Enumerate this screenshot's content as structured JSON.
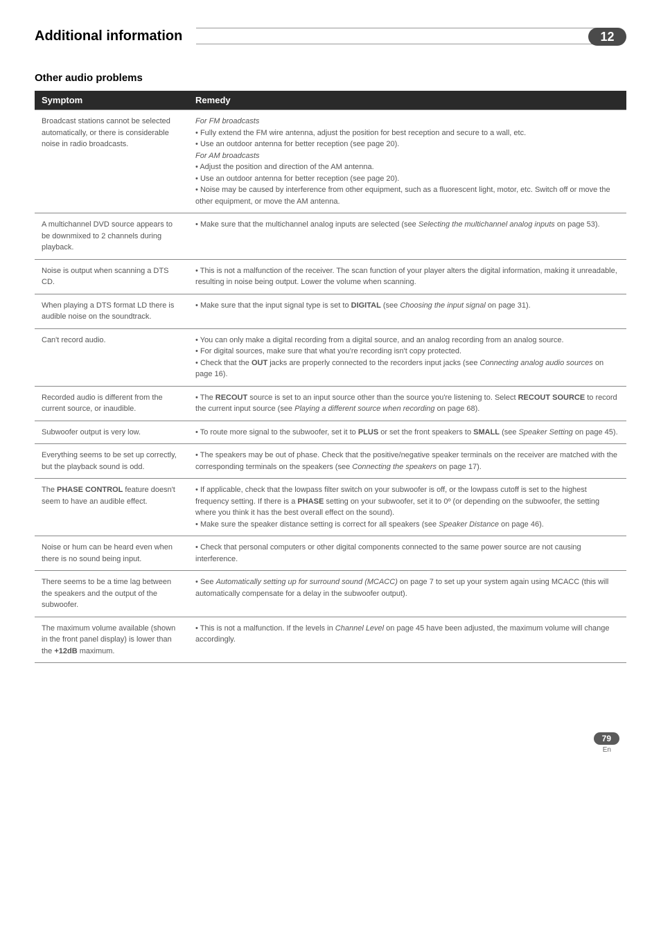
{
  "header": {
    "title": "Additional information",
    "badge": "12"
  },
  "section": {
    "title": "Other audio problems"
  },
  "table": {
    "columns": [
      "Symptom",
      "Remedy"
    ],
    "rows": [
      {
        "symptom": "Broadcast stations cannot be selected automatically, or there is considerable noise in radio broadcasts.",
        "remedy": "<span class=\"italic\">For FM broadcasts</span><br>• Fully extend the FM wire antenna, adjust the position for best reception and secure to a wall, etc.<br>• Use an outdoor antenna for better reception (see page 20).<br><span class=\"italic\">For AM broadcasts</span><br>• Adjust the position and direction of the AM antenna.<br>• Use an outdoor antenna for better reception (see page 20).<br>• Noise may be caused by interference from other equipment, such as a fluorescent light, motor, etc. Switch off or move the other equipment, or move the AM antenna."
      },
      {
        "symptom": "A multichannel DVD source appears to be downmixed to 2 channels during playback.",
        "remedy": "• Make sure that the multichannel analog inputs are selected (see <span class=\"italic\">Selecting the multichannel analog inputs</span> on page 53)."
      },
      {
        "symptom": "Noise is output when scanning a DTS CD.",
        "remedy": "• This is not a malfunction of the receiver. The scan function of your player alters the digital information, making it unreadable, resulting in noise being output. Lower the volume when scanning."
      },
      {
        "symptom": "When playing a DTS format LD there is audible noise on the soundtrack.",
        "remedy": "• Make sure that the input signal type is set to <b>DIGITAL</b> (see <span class=\"italic\">Choosing the input signal</span> on page 31)."
      },
      {
        "symptom": "Can't record audio.",
        "remedy": "• You can only make a digital recording from a digital source, and an analog recording from an analog source.<br>• For digital sources, make sure that what you're recording isn't copy protected.<br>• Check that the <b>OUT</b> jacks are properly connected to the recorders input jacks (see <span class=\"italic\">Connecting analog audio sources</span> on page 16)."
      },
      {
        "symptom": "Recorded audio is different from the current source, or inaudible.",
        "remedy": "• The <b>RECOUT</b> source is set to an input source other than the source you're listening to. Select <b>RECOUT SOURCE</b> to record the current input source (see <span class=\"italic\">Playing a different source when recording</span> on page 68)."
      },
      {
        "symptom": "Subwoofer output is very low.",
        "remedy": "• To route more signal to the subwoofer, set it to <b>PLUS</b> or set the front speakers to <b>SMALL</b> (see <span class=\"italic\">Speaker Setting</span> on page 45)."
      },
      {
        "symptom": "Everything seems to be set up correctly, but the playback sound is odd.",
        "remedy": "• The speakers may be out of phase. Check that the positive/negative speaker terminals on the receiver are matched with the corresponding terminals on the speakers (see <span class=\"italic\">Connecting the speakers</span> on page 17)."
      },
      {
        "symptom": "The <b>PHASE CONTROL</b> feature doesn't seem to have an audible effect.",
        "remedy": "• If applicable, check that the lowpass filter switch on your subwoofer is off, or the lowpass cutoff is set to the highest frequency setting. If there is a <b>PHASE</b> setting on your subwoofer, set it to 0º (or depending on the subwoofer, the setting where you think it has the best overall effect on the sound).<br>• Make sure the speaker distance setting is correct for all speakers (see <span class=\"italic\">Speaker Distance</span> on page 46)."
      },
      {
        "symptom": "Noise or hum can be heard even when there is no sound being input.",
        "remedy": "• Check that personal computers or other digital components connected to the same power source are not causing interference."
      },
      {
        "symptom": "There seems to be a time lag between the speakers and the output of the subwoofer.",
        "remedy": "• See <span class=\"italic\">Automatically setting up for surround sound (MCACC)</span> on page 7 to set up your system again using MCACC (this will automatically compensate for a delay in the subwoofer output)."
      },
      {
        "symptom": "The maximum volume available (shown in the front panel display) is lower than the <b>+12dB</b> maximum.",
        "remedy": "• This is not a malfunction. If the levels in <span class=\"italic\">Channel Level</span> on page 45 have been adjusted, the maximum volume will change accordingly."
      }
    ]
  },
  "footer": {
    "page": "79",
    "lang": "En"
  }
}
